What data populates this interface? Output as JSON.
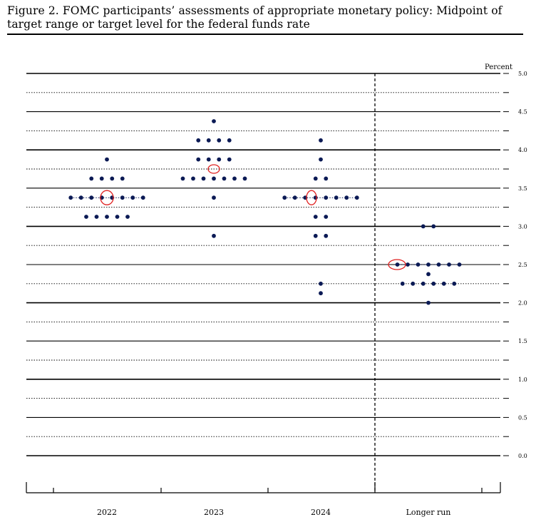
{
  "figure": {
    "title": "Figure 2.  FOMC participants’ assessments of appropriate monetary policy:  Midpoint of target range or target level for the federal funds rate"
  },
  "chart_data": {
    "type": "scatter",
    "ylabel": "Percent",
    "ylim": [
      0.0,
      5.0
    ],
    "y_ticks": [
      "0.0",
      "0.5",
      "1.0",
      "1.5",
      "2.0",
      "2.5",
      "3.0",
      "3.5",
      "4.0",
      "4.5",
      "5.0"
    ],
    "categories": [
      "2022",
      "2023",
      "2024",
      "Longer run"
    ],
    "grid": true,
    "marker_color": "#0b1a55",
    "highlight_color": "#e02020",
    "groups": [
      {
        "category": "2022",
        "points": [
          {
            "y": 3.875,
            "count": 1
          },
          {
            "y": 3.625,
            "count": 4
          },
          {
            "y": 3.375,
            "count": 8
          },
          {
            "y": 3.125,
            "count": 5
          }
        ],
        "highlight_y": 3.375
      },
      {
        "category": "2023",
        "points": [
          {
            "y": 4.375,
            "count": 1
          },
          {
            "y": 4.125,
            "count": 4
          },
          {
            "y": 3.875,
            "count": 4
          },
          {
            "y": 3.625,
            "count": 7
          },
          {
            "y": 3.375,
            "count": 1
          },
          {
            "y": 2.875,
            "count": 1
          }
        ],
        "highlight_y": 3.75
      },
      {
        "category": "2024",
        "points": [
          {
            "y": 4.125,
            "count": 1
          },
          {
            "y": 3.875,
            "count": 1
          },
          {
            "y": 3.625,
            "count": 2
          },
          {
            "y": 3.375,
            "count": 8
          },
          {
            "y": 3.125,
            "count": 2
          },
          {
            "y": 2.875,
            "count": 2
          },
          {
            "y": 2.25,
            "count": 1
          },
          {
            "y": 2.125,
            "count": 1
          }
        ],
        "highlight_y": 3.375
      },
      {
        "category": "Longer run",
        "points": [
          {
            "y": 3.0,
            "count": 2
          },
          {
            "y": 2.5,
            "count": 7
          },
          {
            "y": 2.375,
            "count": 1
          },
          {
            "y": 2.25,
            "count": 6
          },
          {
            "y": 2.0,
            "count": 1
          }
        ],
        "highlight_y": 2.5
      }
    ]
  }
}
